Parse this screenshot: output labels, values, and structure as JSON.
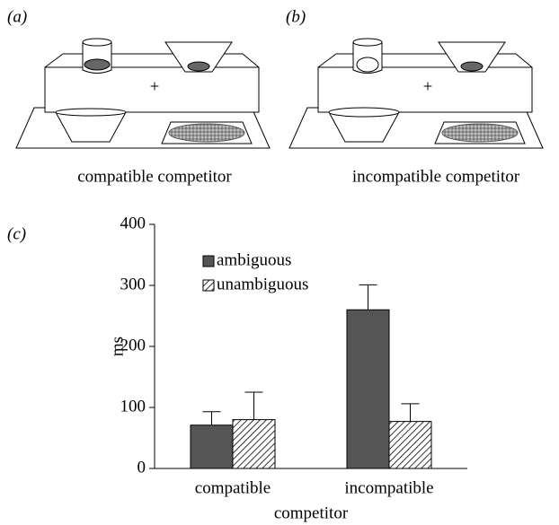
{
  "panels": [
    {
      "label": "(a)",
      "caption": "compatible competitor"
    },
    {
      "label": "(b)",
      "caption": "incompatible competitor"
    }
  ],
  "chart_data": {
    "type": "bar",
    "panel_label": "(c)",
    "categories": [
      "compatible",
      "incompatible"
    ],
    "x_label": "competitor",
    "y_label": "ms",
    "series": [
      {
        "name": "ambiguous",
        "color": "#555555",
        "hatch": false,
        "values": [
          71,
          260
        ],
        "errors": [
          22,
          41
        ]
      },
      {
        "name": "unambiguous",
        "color": "#ffffff",
        "hatch": true,
        "values": [
          80,
          77
        ],
        "errors": [
          45,
          29
        ]
      }
    ],
    "ylim": [
      0,
      400
    ],
    "yticks": [
      0,
      100,
      200,
      300,
      400
    ],
    "grid": false,
    "legend": "upper-left"
  }
}
